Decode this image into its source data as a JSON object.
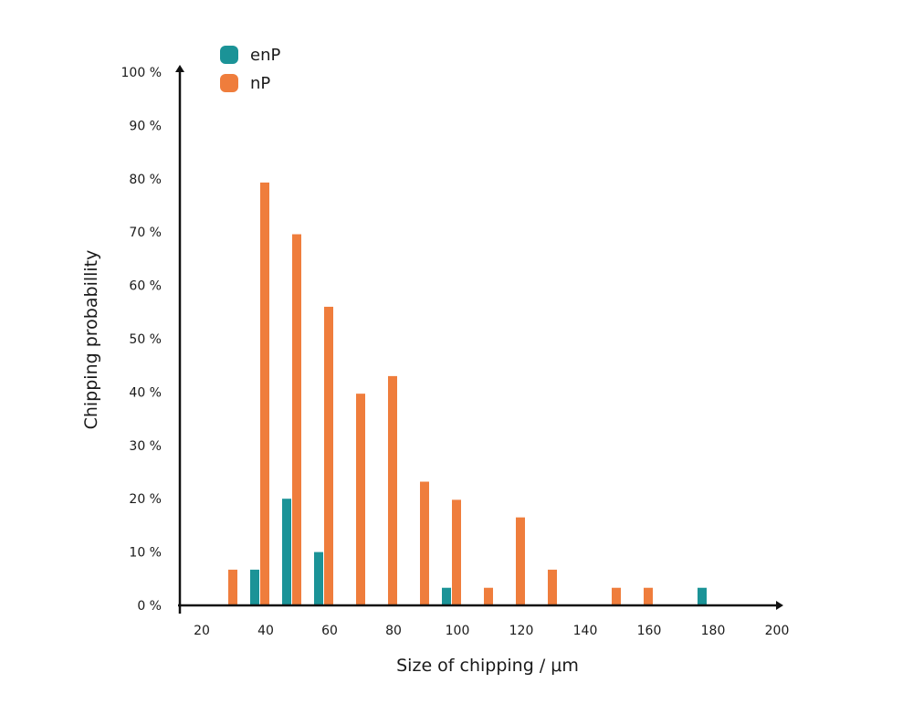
{
  "chart_data": {
    "type": "bar",
    "xlabel": "Size of chipping / μm",
    "ylabel": "Chipping probabillity",
    "x_ticks": [
      "20",
      "40",
      "60",
      "80",
      "100",
      "120",
      "140",
      "160",
      "180",
      "200"
    ],
    "y_ticks": [
      "0 %",
      "10 %",
      "20 %",
      "30 %",
      "40 %",
      "50 %",
      "60 %",
      "70 %",
      "80 %",
      "90 %",
      "100 %"
    ],
    "xlim": [
      20,
      200
    ],
    "ylim": [
      0,
      100
    ],
    "grid": false,
    "legend_position": "top-left",
    "series": [
      {
        "name": "enP",
        "color": "#1b9397",
        "points": [
          {
            "x": 40,
            "y": 6.7
          },
          {
            "x": 50,
            "y": 20
          },
          {
            "x": 60,
            "y": 10
          },
          {
            "x": 100,
            "y": 3.3
          },
          {
            "x": 180,
            "y": 3.3
          }
        ]
      },
      {
        "name": "nP",
        "color": "#ef7d3c",
        "points": [
          {
            "x": 30,
            "y": 6.7
          },
          {
            "x": 40,
            "y": 79.3
          },
          {
            "x": 50,
            "y": 69.6
          },
          {
            "x": 60,
            "y": 56
          },
          {
            "x": 70,
            "y": 39.7
          },
          {
            "x": 80,
            "y": 43
          },
          {
            "x": 90,
            "y": 23.2
          },
          {
            "x": 100,
            "y": 19.8
          },
          {
            "x": 110,
            "y": 3.3
          },
          {
            "x": 120,
            "y": 16.5
          },
          {
            "x": 130,
            "y": 6.7
          },
          {
            "x": 150,
            "y": 3.3
          },
          {
            "x": 160,
            "y": 3.3
          }
        ]
      }
    ]
  }
}
